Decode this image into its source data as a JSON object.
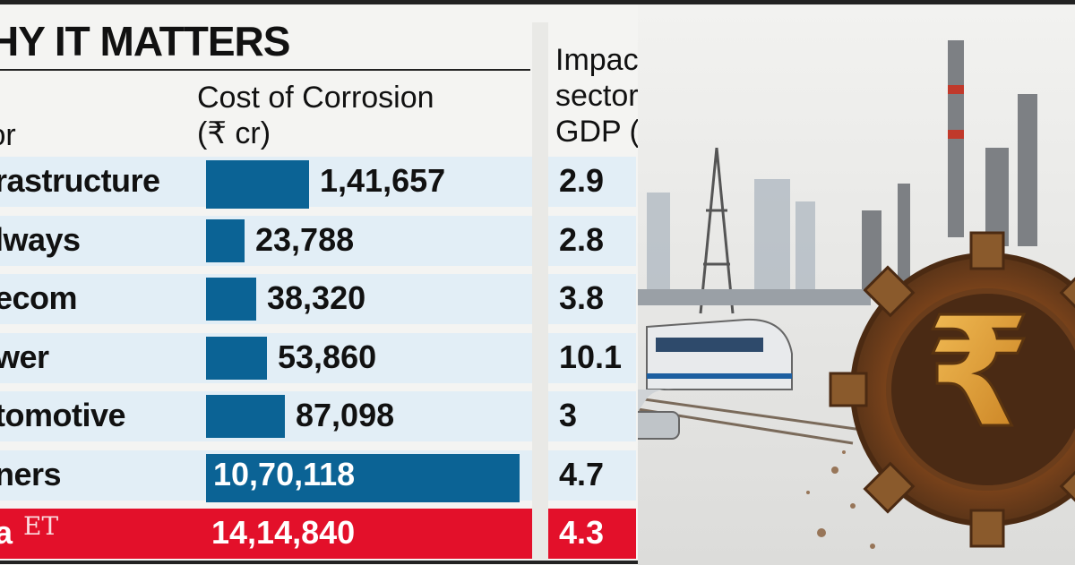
{
  "header": {
    "title": "HY IT MATTERS"
  },
  "columns": {
    "sector": "tor",
    "cost": [
      "Cost of Corrosion",
      "(₹ cr)"
    ],
    "impact": [
      "Impact on",
      "sectoral",
      "GDP (%)"
    ]
  },
  "chart_data": {
    "type": "bar",
    "categories": [
      "rastructure",
      "lways",
      "ecom",
      "wer",
      "tomotive",
      "ners",
      "a"
    ],
    "series": [
      {
        "values": [
          141657,
          23788,
          38320,
          53860,
          87098,
          1070118,
          1414840
        ]
      }
    ],
    "value_labels": [
      "1,41,657",
      "23,788",
      "38,320",
      "53,860",
      "87,098",
      "10,70,118",
      "14,14,840"
    ],
    "impact_on_sectoral_gdp_pct": [
      "2.9",
      "2.8",
      "3.8",
      "10.1",
      "3",
      "4.7",
      "4.3"
    ],
    "total_row_index": 6,
    "xlabel": "",
    "ylabel": "",
    "colors": {
      "bar": "#0b6395",
      "total_band": "#e3102a",
      "row_band": "#e2eef6"
    }
  },
  "logo": {
    "text": "ET"
  },
  "icons": [
    "rupee-gear-icon",
    "train-icon",
    "car-icon",
    "industrial-skyline-illustration"
  ]
}
